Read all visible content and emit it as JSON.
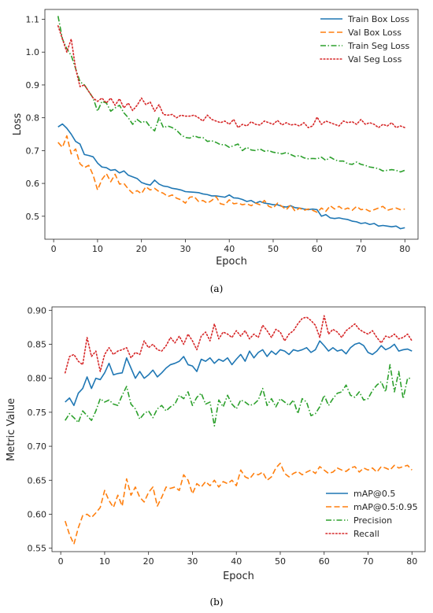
{
  "chart_data": [
    {
      "type": "line",
      "caption": "(a)",
      "xlabel": "Epoch",
      "ylabel": "Loss",
      "xlim": [
        -2,
        83
      ],
      "ylim": [
        0.43,
        1.13
      ],
      "xticks": [
        "0",
        "10",
        "20",
        "30",
        "40",
        "50",
        "60",
        "70",
        "80"
      ],
      "yticks": [
        "0.5",
        "0.6",
        "0.7",
        "0.8",
        "0.9",
        "1.0",
        "1.1"
      ],
      "legend_position": "top-right",
      "x": [
        1,
        2,
        3,
        4,
        5,
        6,
        7,
        8,
        9,
        10,
        11,
        12,
        13,
        14,
        15,
        16,
        17,
        18,
        19,
        20,
        21,
        22,
        23,
        24,
        25,
        26,
        27,
        28,
        29,
        30,
        31,
        32,
        33,
        34,
        35,
        36,
        37,
        38,
        39,
        40,
        41,
        42,
        43,
        44,
        45,
        46,
        47,
        48,
        49,
        50,
        51,
        52,
        53,
        54,
        55,
        56,
        57,
        58,
        59,
        60,
        61,
        62,
        63,
        64,
        65,
        66,
        67,
        68,
        69,
        70,
        71,
        72,
        73,
        74,
        75,
        76,
        77,
        78,
        79,
        80
      ],
      "series": [
        {
          "name": "Train Box Loss",
          "color": "#1f77b4",
          "style": "solid",
          "values": [
            0.772,
            0.781,
            0.768,
            0.75,
            0.728,
            0.72,
            0.688,
            0.685,
            0.681,
            0.662,
            0.65,
            0.648,
            0.64,
            0.642,
            0.632,
            0.638,
            0.625,
            0.62,
            0.615,
            0.603,
            0.598,
            0.595,
            0.61,
            0.598,
            0.592,
            0.59,
            0.585,
            0.583,
            0.58,
            0.575,
            0.574,
            0.573,
            0.572,
            0.568,
            0.566,
            0.562,
            0.562,
            0.56,
            0.558,
            0.565,
            0.556,
            0.555,
            0.551,
            0.545,
            0.548,
            0.54,
            0.545,
            0.54,
            0.538,
            0.535,
            0.535,
            0.53,
            0.528,
            0.532,
            0.526,
            0.525,
            0.522,
            0.52,
            0.522,
            0.52,
            0.5,
            0.505,
            0.495,
            0.493,
            0.495,
            0.492,
            0.49,
            0.485,
            0.483,
            0.478,
            0.48,
            0.475,
            0.478,
            0.47,
            0.472,
            0.47,
            0.468,
            0.47,
            0.462,
            0.465
          ]
        },
        {
          "name": "Val Box Loss",
          "color": "#ff7f0e",
          "style": "dashed",
          "values": [
            0.725,
            0.71,
            0.745,
            0.69,
            0.705,
            0.66,
            0.648,
            0.655,
            0.625,
            0.58,
            0.612,
            0.63,
            0.605,
            0.628,
            0.598,
            0.6,
            0.583,
            0.57,
            0.578,
            0.569,
            0.59,
            0.58,
            0.585,
            0.575,
            0.57,
            0.56,
            0.565,
            0.555,
            0.55,
            0.54,
            0.558,
            0.56,
            0.545,
            0.548,
            0.54,
            0.548,
            0.56,
            0.538,
            0.535,
            0.55,
            0.538,
            0.54,
            0.535,
            0.538,
            0.532,
            0.54,
            0.535,
            0.548,
            0.53,
            0.525,
            0.54,
            0.53,
            0.52,
            0.535,
            0.515,
            0.525,
            0.518,
            0.522,
            0.518,
            0.512,
            0.525,
            0.515,
            0.532,
            0.522,
            0.53,
            0.52,
            0.525,
            0.518,
            0.53,
            0.52,
            0.522,
            0.515,
            0.52,
            0.525,
            0.53,
            0.518,
            0.522,
            0.525,
            0.52,
            0.522
          ]
        },
        {
          "name": "Train Seg Loss",
          "color": "#2ca02c",
          "style": "dashdot",
          "values": [
            1.11,
            1.04,
            1.01,
            0.99,
            0.95,
            0.91,
            0.9,
            0.88,
            0.86,
            0.82,
            0.85,
            0.845,
            0.82,
            0.83,
            0.838,
            0.815,
            0.8,
            0.78,
            0.795,
            0.785,
            0.79,
            0.772,
            0.76,
            0.8,
            0.77,
            0.775,
            0.77,
            0.762,
            0.748,
            0.74,
            0.738,
            0.745,
            0.74,
            0.74,
            0.728,
            0.73,
            0.725,
            0.718,
            0.718,
            0.71,
            0.715,
            0.72,
            0.7,
            0.71,
            0.702,
            0.7,
            0.705,
            0.698,
            0.7,
            0.695,
            0.693,
            0.69,
            0.694,
            0.688,
            0.682,
            0.685,
            0.678,
            0.675,
            0.676,
            0.675,
            0.68,
            0.67,
            0.68,
            0.672,
            0.668,
            0.668,
            0.66,
            0.658,
            0.665,
            0.658,
            0.655,
            0.65,
            0.648,
            0.645,
            0.638,
            0.64,
            0.642,
            0.64,
            0.635,
            0.64
          ]
        },
        {
          "name": "Val Seg Loss",
          "color": "#d62728",
          "style": "dotted",
          "values": [
            1.08,
            1.04,
            1.0,
            1.04,
            0.95,
            0.895,
            0.9,
            0.88,
            0.86,
            0.85,
            0.86,
            0.845,
            0.86,
            0.838,
            0.858,
            0.83,
            0.845,
            0.822,
            0.838,
            0.86,
            0.84,
            0.848,
            0.82,
            0.84,
            0.81,
            0.808,
            0.81,
            0.8,
            0.808,
            0.805,
            0.805,
            0.808,
            0.8,
            0.79,
            0.808,
            0.795,
            0.79,
            0.785,
            0.79,
            0.78,
            0.795,
            0.77,
            0.78,
            0.775,
            0.788,
            0.78,
            0.778,
            0.79,
            0.785,
            0.78,
            0.792,
            0.778,
            0.785,
            0.778,
            0.78,
            0.775,
            0.785,
            0.77,
            0.775,
            0.802,
            0.78,
            0.79,
            0.785,
            0.78,
            0.775,
            0.79,
            0.785,
            0.788,
            0.78,
            0.795,
            0.78,
            0.785,
            0.78,
            0.77,
            0.78,
            0.775,
            0.785,
            0.77,
            0.775,
            0.77
          ]
        }
      ]
    },
    {
      "type": "line",
      "caption": "(b)",
      "xlabel": "Epoch",
      "ylabel": "Metric Value",
      "xlim": [
        -2,
        83
      ],
      "ylim": [
        0.545,
        0.905
      ],
      "xticks": [
        "0",
        "10",
        "20",
        "30",
        "40",
        "50",
        "60",
        "70",
        "80"
      ],
      "yticks": [
        "0.55",
        "0.60",
        "0.65",
        "0.70",
        "0.75",
        "0.80",
        "0.85",
        "0.90"
      ],
      "legend_position": "lower-right",
      "x": [
        1,
        2,
        3,
        4,
        5,
        6,
        7,
        8,
        9,
        10,
        11,
        12,
        13,
        14,
        15,
        16,
        17,
        18,
        19,
        20,
        21,
        22,
        23,
        24,
        25,
        26,
        27,
        28,
        29,
        30,
        31,
        32,
        33,
        34,
        35,
        36,
        37,
        38,
        39,
        40,
        41,
        42,
        43,
        44,
        45,
        46,
        47,
        48,
        49,
        50,
        51,
        52,
        53,
        54,
        55,
        56,
        57,
        58,
        59,
        60,
        61,
        62,
        63,
        64,
        65,
        66,
        67,
        68,
        69,
        70,
        71,
        72,
        73,
        74,
        75,
        76,
        77,
        78,
        79,
        80
      ],
      "series": [
        {
          "name": "mAP@0.5",
          "color": "#1f77b4",
          "style": "solid",
          "values": [
            0.765,
            0.771,
            0.76,
            0.778,
            0.785,
            0.802,
            0.785,
            0.8,
            0.798,
            0.808,
            0.822,
            0.805,
            0.807,
            0.808,
            0.83,
            0.815,
            0.8,
            0.81,
            0.8,
            0.805,
            0.812,
            0.802,
            0.808,
            0.815,
            0.82,
            0.822,
            0.825,
            0.832,
            0.82,
            0.818,
            0.81,
            0.828,
            0.825,
            0.83,
            0.822,
            0.828,
            0.825,
            0.83,
            0.82,
            0.828,
            0.835,
            0.825,
            0.84,
            0.83,
            0.838,
            0.842,
            0.832,
            0.84,
            0.835,
            0.842,
            0.84,
            0.835,
            0.842,
            0.84,
            0.842,
            0.845,
            0.838,
            0.842,
            0.855,
            0.848,
            0.84,
            0.845,
            0.84,
            0.842,
            0.836,
            0.845,
            0.85,
            0.852,
            0.848,
            0.838,
            0.835,
            0.84,
            0.848,
            0.842,
            0.845,
            0.85,
            0.84,
            0.842,
            0.843,
            0.84
          ]
        },
        {
          "name": "mAP@0.5:0.95",
          "color": "#ff7f0e",
          "style": "dashed",
          "values": [
            0.59,
            0.57,
            0.556,
            0.58,
            0.598,
            0.6,
            0.595,
            0.602,
            0.61,
            0.635,
            0.62,
            0.61,
            0.628,
            0.612,
            0.652,
            0.628,
            0.64,
            0.625,
            0.618,
            0.632,
            0.64,
            0.612,
            0.625,
            0.64,
            0.638,
            0.64,
            0.635,
            0.658,
            0.65,
            0.63,
            0.645,
            0.64,
            0.648,
            0.642,
            0.65,
            0.64,
            0.648,
            0.645,
            0.65,
            0.642,
            0.665,
            0.655,
            0.652,
            0.66,
            0.658,
            0.662,
            0.65,
            0.655,
            0.668,
            0.675,
            0.66,
            0.655,
            0.66,
            0.663,
            0.658,
            0.662,
            0.665,
            0.66,
            0.67,
            0.665,
            0.66,
            0.662,
            0.668,
            0.665,
            0.663,
            0.668,
            0.67,
            0.662,
            0.668,
            0.665,
            0.668,
            0.662,
            0.67,
            0.668,
            0.665,
            0.672,
            0.668,
            0.67,
            0.672,
            0.665
          ]
        },
        {
          "name": "Precision",
          "color": "#2ca02c",
          "style": "dashdot",
          "values": [
            0.738,
            0.748,
            0.742,
            0.735,
            0.752,
            0.745,
            0.738,
            0.752,
            0.77,
            0.765,
            0.768,
            0.762,
            0.76,
            0.775,
            0.788,
            0.762,
            0.755,
            0.74,
            0.748,
            0.752,
            0.742,
            0.755,
            0.76,
            0.752,
            0.758,
            0.762,
            0.775,
            0.77,
            0.78,
            0.76,
            0.772,
            0.778,
            0.762,
            0.765,
            0.73,
            0.768,
            0.758,
            0.775,
            0.762,
            0.755,
            0.768,
            0.765,
            0.76,
            0.762,
            0.768,
            0.785,
            0.76,
            0.77,
            0.758,
            0.77,
            0.765,
            0.76,
            0.768,
            0.748,
            0.77,
            0.765,
            0.745,
            0.748,
            0.758,
            0.775,
            0.76,
            0.77,
            0.778,
            0.78,
            0.79,
            0.775,
            0.772,
            0.78,
            0.768,
            0.77,
            0.782,
            0.79,
            0.795,
            0.78,
            0.82,
            0.78,
            0.81,
            0.77,
            0.8,
            0.8
          ]
        },
        {
          "name": "Recall",
          "color": "#d62728",
          "style": "dotted",
          "values": [
            0.808,
            0.832,
            0.835,
            0.825,
            0.82,
            0.86,
            0.832,
            0.84,
            0.81,
            0.835,
            0.845,
            0.835,
            0.84,
            0.842,
            0.845,
            0.83,
            0.838,
            0.835,
            0.855,
            0.845,
            0.85,
            0.842,
            0.84,
            0.848,
            0.86,
            0.852,
            0.862,
            0.85,
            0.865,
            0.855,
            0.842,
            0.862,
            0.868,
            0.855,
            0.88,
            0.858,
            0.868,
            0.865,
            0.86,
            0.87,
            0.862,
            0.87,
            0.858,
            0.865,
            0.86,
            0.878,
            0.87,
            0.86,
            0.872,
            0.868,
            0.855,
            0.865,
            0.87,
            0.88,
            0.888,
            0.89,
            0.885,
            0.878,
            0.86,
            0.892,
            0.865,
            0.872,
            0.868,
            0.86,
            0.87,
            0.875,
            0.88,
            0.872,
            0.868,
            0.865,
            0.87,
            0.86,
            0.852,
            0.862,
            0.86,
            0.865,
            0.858,
            0.86,
            0.865,
            0.855
          ]
        }
      ]
    }
  ]
}
